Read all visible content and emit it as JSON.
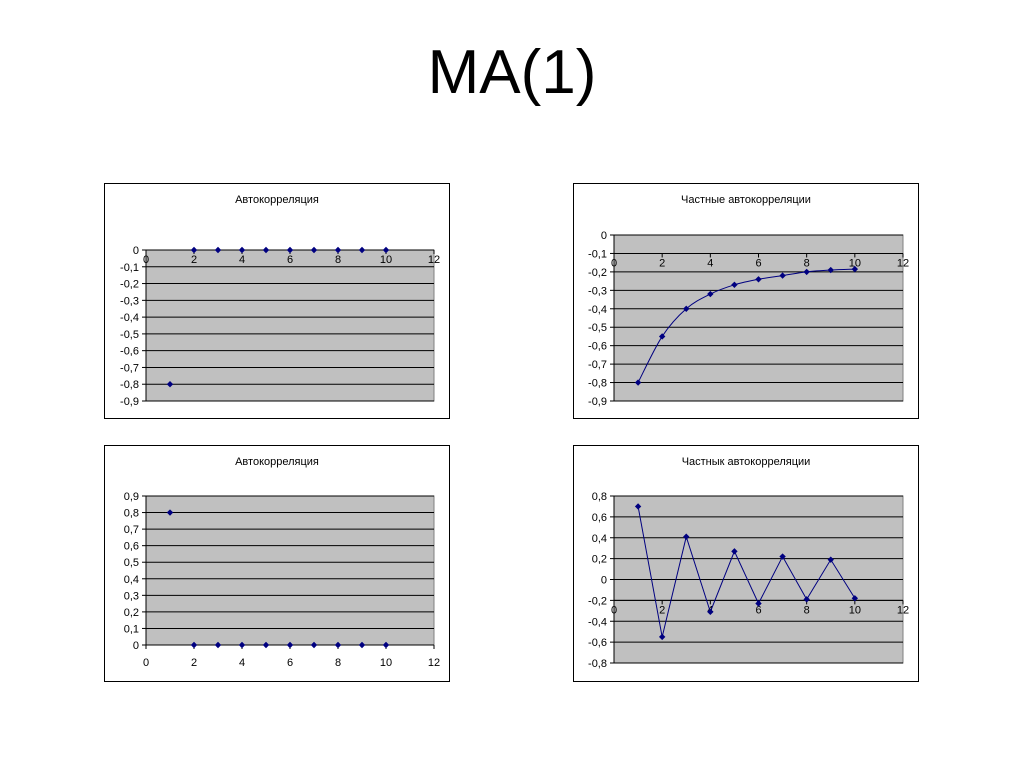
{
  "slide": {
    "title": "MA(1)"
  },
  "chart_data": [
    {
      "id": "acf-neg",
      "type": "scatter",
      "title": "Автокорреляция",
      "xlim": [
        0,
        12
      ],
      "ylim": [
        -0.9,
        0
      ],
      "x_ticks": [
        "0",
        "2",
        "4",
        "6",
        "8",
        "10",
        "12"
      ],
      "y_ticks": [
        "0",
        "-0,1",
        "-0,2",
        "-0,3",
        "-0,4",
        "-0,5",
        "-0,6",
        "-0,7",
        "-0,8",
        "-0,9"
      ],
      "x_axis_at": "y=0",
      "series": [
        {
          "x": [
            1,
            2,
            3,
            4,
            5,
            6,
            7,
            8,
            9,
            10
          ],
          "y": [
            -0.8,
            0,
            0,
            0,
            0,
            0,
            0,
            0,
            0,
            0
          ]
        }
      ],
      "grid": true,
      "colors": {
        "marker": "#000080",
        "plot_bg": "#c0c0c0"
      }
    },
    {
      "id": "pacf-neg",
      "type": "line",
      "title": "Частные автокорреляции",
      "xlim": [
        0,
        12
      ],
      "ylim": [
        -0.9,
        0
      ],
      "x_ticks": [
        "0",
        "2",
        "4",
        "6",
        "8",
        "10",
        "12"
      ],
      "y_ticks": [
        "0",
        "-0,1",
        "-0,2",
        "-0,3",
        "-0,4",
        "-0,5",
        "-0,6",
        "-0,7",
        "-0,8",
        "-0,9"
      ],
      "x_axis_at": "y=-0.1",
      "series": [
        {
          "x": [
            1,
            2,
            3,
            4,
            5,
            6,
            7,
            8,
            9,
            10
          ],
          "y": [
            -0.8,
            -0.55,
            -0.4,
            -0.32,
            -0.27,
            -0.24,
            -0.22,
            -0.2,
            -0.19,
            -0.185
          ]
        }
      ],
      "grid": true,
      "colors": {
        "marker": "#000080",
        "plot_bg": "#c0c0c0"
      }
    },
    {
      "id": "acf-pos",
      "type": "scatter",
      "title": "Автокорреляция",
      "xlim": [
        0,
        12
      ],
      "ylim": [
        0,
        0.9
      ],
      "x_ticks": [
        "0",
        "2",
        "4",
        "6",
        "8",
        "10",
        "12"
      ],
      "y_ticks": [
        "0,9",
        "0,8",
        "0,7",
        "0,6",
        "0,5",
        "0,4",
        "0,3",
        "0,2",
        "0,1",
        "0"
      ],
      "x_axis_at": "below",
      "series": [
        {
          "x": [
            1,
            2,
            3,
            4,
            5,
            6,
            7,
            8,
            9,
            10
          ],
          "y": [
            0.8,
            0,
            0,
            0,
            0,
            0,
            0,
            0,
            0,
            0
          ]
        }
      ],
      "grid": true,
      "colors": {
        "marker": "#000080",
        "plot_bg": "#c0c0c0"
      }
    },
    {
      "id": "pacf-alt",
      "type": "line",
      "title": "Частнык автокорреляции",
      "xlim": [
        0,
        12
      ],
      "ylim": [
        -0.8,
        0.8
      ],
      "x_ticks": [
        "0",
        "2",
        "4",
        "6",
        "8",
        "10",
        "12"
      ],
      "y_ticks": [
        "0,8",
        "0,6",
        "0,4",
        "0,2",
        "0",
        "-0,2",
        "-0,4",
        "-0,6",
        "-0,8"
      ],
      "x_axis_at": "y=-0.2",
      "series": [
        {
          "x": [
            1,
            2,
            3,
            4,
            5,
            6,
            7,
            8,
            9,
            10
          ],
          "y": [
            0.7,
            -0.55,
            0.41,
            -0.31,
            0.27,
            -0.23,
            0.22,
            -0.19,
            0.19,
            -0.18
          ]
        }
      ],
      "grid": true,
      "colors": {
        "marker": "#000080",
        "plot_bg": "#c0c0c0"
      }
    }
  ]
}
